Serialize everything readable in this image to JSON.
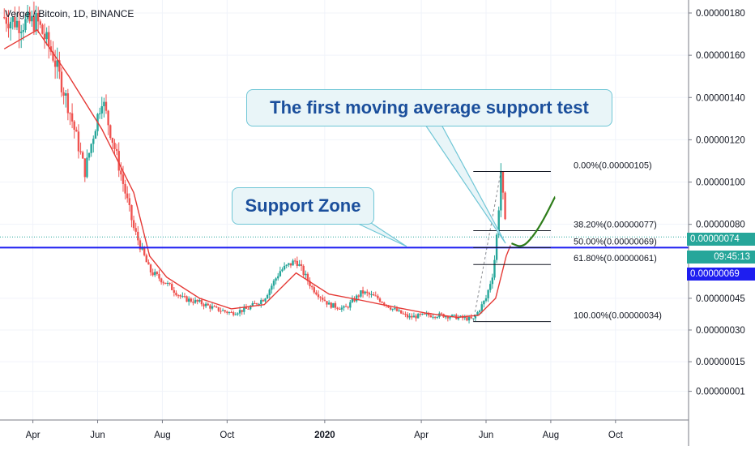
{
  "symbol": "Verge / Bitcoin, 1D, BINANCE",
  "annotations": {
    "moving_average_note": "The first moving average support test",
    "support_zone_note": "Support Zone"
  },
  "price_tags": {
    "last_price": "0.00000074",
    "countdown": "09:45:13",
    "horizontal_line": "0.00000069"
  },
  "colors": {
    "up_candle": "#26a69a",
    "down_candle": "#ef5350",
    "moving_average": "#e53935",
    "support_line": "#1e1ef0",
    "projection_curve": "#2e7d1a",
    "callout_text": "#1b4f9c"
  },
  "chart_data": {
    "type": "candlestick",
    "title": "Verge / Bitcoin, 1D, BINANCE",
    "x_ticks": [
      "Apr",
      "Jun",
      "Aug",
      "Oct",
      "2020",
      "Apr",
      "Jun",
      "Aug",
      "Oct"
    ],
    "y_ticks": [
      "0.00000180",
      "0.00000160",
      "0.00000140",
      "0.00000120",
      "0.00000100",
      "0.00000080",
      "0.00000045",
      "0.00000030",
      "0.00000015",
      "0.00000001"
    ],
    "ylim": [
      -4e-08,
      1.87e-06
    ],
    "grid": true,
    "price_path": [
      {
        "date": "2019-03-05",
        "price": 1.78e-06
      },
      {
        "date": "2019-03-20",
        "price": 1.75e-06
      },
      {
        "date": "2019-04-05",
        "price": 1.76e-06
      },
      {
        "date": "2019-04-20",
        "price": 1.6e-06
      },
      {
        "date": "2019-05-05",
        "price": 1.35e-06
      },
      {
        "date": "2019-05-20",
        "price": 1.05e-06
      },
      {
        "date": "2019-06-05",
        "price": 1.4e-06
      },
      {
        "date": "2019-06-20",
        "price": 1.1e-06
      },
      {
        "date": "2019-07-05",
        "price": 7.8e-07
      },
      {
        "date": "2019-07-20",
        "price": 5.8e-07
      },
      {
        "date": "2019-08-05",
        "price": 5.2e-07
      },
      {
        "date": "2019-08-20",
        "price": 4.5e-07
      },
      {
        "date": "2019-09-05",
        "price": 4.3e-07
      },
      {
        "date": "2019-09-20",
        "price": 4e-07
      },
      {
        "date": "2019-10-05",
        "price": 3.8e-07
      },
      {
        "date": "2019-10-20",
        "price": 4e-07
      },
      {
        "date": "2019-11-05",
        "price": 4.5e-07
      },
      {
        "date": "2019-11-20",
        "price": 5.8e-07
      },
      {
        "date": "2019-12-05",
        "price": 6.3e-07
      },
      {
        "date": "2019-12-20",
        "price": 5e-07
      },
      {
        "date": "2020-01-05",
        "price": 4.2e-07
      },
      {
        "date": "2020-01-20",
        "price": 4e-07
      },
      {
        "date": "2020-02-05",
        "price": 4.8e-07
      },
      {
        "date": "2020-02-20",
        "price": 4.5e-07
      },
      {
        "date": "2020-03-05",
        "price": 4e-07
      },
      {
        "date": "2020-03-20",
        "price": 3.6e-07
      },
      {
        "date": "2020-04-05",
        "price": 3.7e-07
      },
      {
        "date": "2020-04-20",
        "price": 3.7e-07
      },
      {
        "date": "2020-05-05",
        "price": 3.6e-07
      },
      {
        "date": "2020-05-20",
        "price": 3.5e-07
      },
      {
        "date": "2020-06-01",
        "price": 4.5e-07
      },
      {
        "date": "2020-06-08",
        "price": 5.8e-07
      },
      {
        "date": "2020-06-12",
        "price": 8e-07
      },
      {
        "date": "2020-06-15",
        "price": 1.05e-06
      },
      {
        "date": "2020-06-20",
        "price": 7.4e-07
      }
    ],
    "moving_average": [
      {
        "date": "2019-03-05",
        "price": 1.63e-06
      },
      {
        "date": "2019-04-05",
        "price": 1.72e-06
      },
      {
        "date": "2019-05-05",
        "price": 1.5e-06
      },
      {
        "date": "2019-06-05",
        "price": 1.25e-06
      },
      {
        "date": "2019-07-05",
        "price": 9.5e-07
      },
      {
        "date": "2019-07-20",
        "price": 6.5e-07
      },
      {
        "date": "2019-08-05",
        "price": 5.5e-07
      },
      {
        "date": "2019-09-05",
        "price": 4.5e-07
      },
      {
        "date": "2019-10-05",
        "price": 4e-07
      },
      {
        "date": "2019-11-05",
        "price": 4.2e-07
      },
      {
        "date": "2019-12-05",
        "price": 5.7e-07
      },
      {
        "date": "2020-01-05",
        "price": 4.7e-07
      },
      {
        "date": "2020-02-05",
        "price": 4.4e-07
      },
      {
        "date": "2020-03-05",
        "price": 4.1e-07
      },
      {
        "date": "2020-04-05",
        "price": 3.8e-07
      },
      {
        "date": "2020-05-05",
        "price": 3.6e-07
      },
      {
        "date": "2020-05-25",
        "price": 3.7e-07
      },
      {
        "date": "2020-06-10",
        "price": 4.5e-07
      },
      {
        "date": "2020-06-20",
        "price": 6.5e-07
      },
      {
        "date": "2020-06-24",
        "price": 7e-07
      }
    ],
    "support_level": 6.9e-07,
    "fibonacci_levels": [
      {
        "label": "0.00%(0.00000105)",
        "price": 1.05e-06
      },
      {
        "label": "38.20%(0.00000077)",
        "price": 7.7e-07
      },
      {
        "label": "50.00%(0.00000069)",
        "price": 6.9e-07
      },
      {
        "label": "61.80%(0.00000061)",
        "price": 6.1e-07
      },
      {
        "label": "100.00%(0.00000034)",
        "price": 3.4e-07
      }
    ],
    "fibonacci_range": {
      "from": "2020-05-20",
      "to": "2020-08-01"
    },
    "projection": [
      {
        "date": "2020-06-25",
        "price": 7.1e-07
      },
      {
        "date": "2020-07-05",
        "price": 6.9e-07
      },
      {
        "date": "2020-07-15",
        "price": 7.4e-07
      },
      {
        "date": "2020-07-25",
        "price": 8.2e-07
      },
      {
        "date": "2020-08-05",
        "price": 9.3e-07
      }
    ]
  }
}
